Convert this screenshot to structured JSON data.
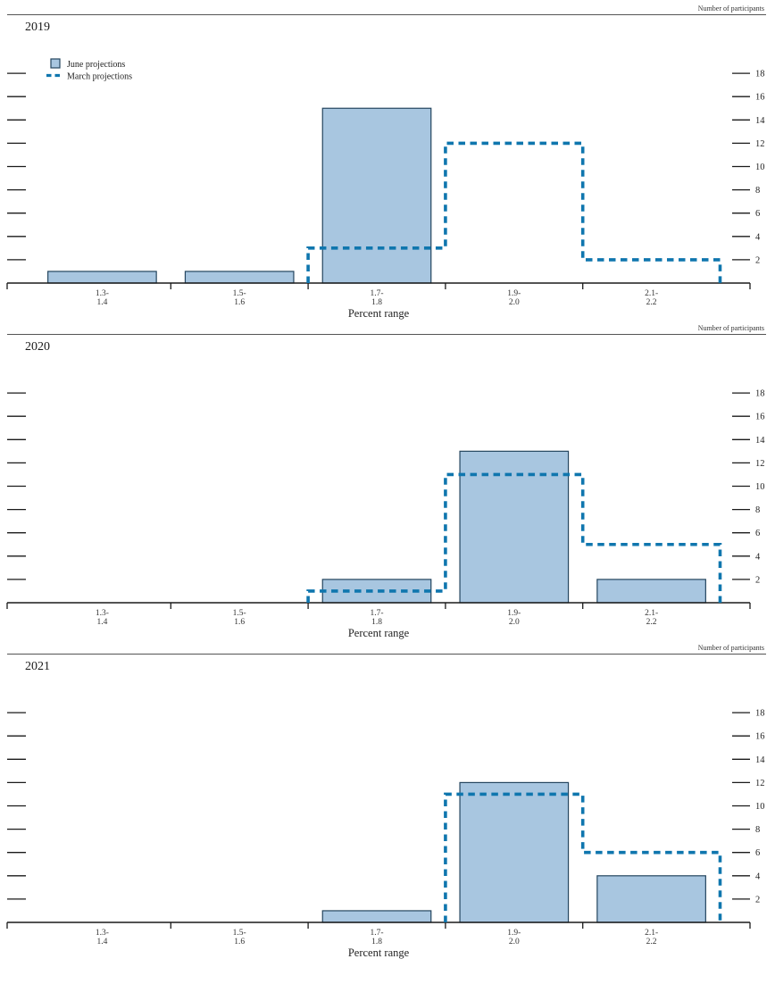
{
  "figure": {
    "ylabel": "Number of participants",
    "xlabel": "Percent range",
    "legend": [
      {
        "label": "June projections",
        "marker": "filled-bar"
      },
      {
        "label": "March projections",
        "marker": "dashed-line"
      }
    ],
    "legend_position": "top-left of first panel only",
    "colors": {
      "bar_fill": "#a8c6e0",
      "bar_border": "#24455f",
      "dashed": "#0f76ae",
      "axis": "#1a1a1a"
    }
  },
  "chart_data": [
    {
      "type": "bar",
      "title": "2019",
      "xlabel": "Percent range",
      "ylabel": "Number of participants",
      "categories": [
        {
          "line1": "1.3-",
          "line2": "1.4"
        },
        {
          "line1": "1.5-",
          "line2": "1.6"
        },
        {
          "line1": "1.7-",
          "line2": "1.8"
        },
        {
          "line1": "1.9-",
          "line2": "2.0"
        },
        {
          "line1": "2.1-",
          "line2": "2.2"
        }
      ],
      "series": [
        {
          "name": "June projections",
          "style": "bar",
          "values": [
            1,
            1,
            15,
            0,
            0
          ]
        },
        {
          "name": "March projections",
          "style": "dashed-step",
          "values": [
            0,
            0,
            3,
            12,
            2
          ]
        }
      ],
      "yticks": [
        2,
        4,
        6,
        8,
        10,
        12,
        14,
        16,
        18
      ],
      "ylim": [
        0,
        19.5
      ],
      "grid": false
    },
    {
      "type": "bar",
      "title": "2020",
      "xlabel": "Percent range",
      "ylabel": "Number of participants",
      "categories": [
        {
          "line1": "1.3-",
          "line2": "1.4"
        },
        {
          "line1": "1.5-",
          "line2": "1.6"
        },
        {
          "line1": "1.7-",
          "line2": "1.8"
        },
        {
          "line1": "1.9-",
          "line2": "2.0"
        },
        {
          "line1": "2.1-",
          "line2": "2.2"
        }
      ],
      "series": [
        {
          "name": "June projections",
          "style": "bar",
          "values": [
            0,
            0,
            2,
            13,
            2
          ]
        },
        {
          "name": "March projections",
          "style": "dashed-step",
          "values": [
            0,
            0,
            1,
            11,
            5
          ]
        }
      ],
      "yticks": [
        2,
        4,
        6,
        8,
        10,
        12,
        14,
        16,
        18
      ],
      "ylim": [
        0,
        19.5
      ],
      "grid": false
    },
    {
      "type": "bar",
      "title": "2021",
      "xlabel": "Percent range",
      "ylabel": "Number of participants",
      "categories": [
        {
          "line1": "1.3-",
          "line2": "1.4"
        },
        {
          "line1": "1.5-",
          "line2": "1.6"
        },
        {
          "line1": "1.7-",
          "line2": "1.8"
        },
        {
          "line1": "1.9-",
          "line2": "2.0"
        },
        {
          "line1": "2.1-",
          "line2": "2.2"
        }
      ],
      "series": [
        {
          "name": "June projections",
          "style": "bar",
          "values": [
            0,
            0,
            1,
            12,
            4
          ]
        },
        {
          "name": "March projections",
          "style": "dashed-step",
          "values": [
            0,
            0,
            0,
            11,
            6
          ]
        }
      ],
      "yticks": [
        2,
        4,
        6,
        8,
        10,
        12,
        14,
        16,
        18
      ],
      "ylim": [
        0,
        19.5
      ],
      "grid": false
    }
  ]
}
